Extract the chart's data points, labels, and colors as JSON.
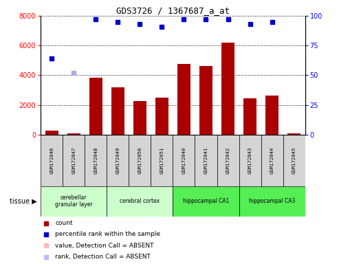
{
  "title": "GDS3726 / 1367687_a_at",
  "samples": [
    "GSM172046",
    "GSM172047",
    "GSM172048",
    "GSM172049",
    "GSM172050",
    "GSM172051",
    "GSM172040",
    "GSM172041",
    "GSM172042",
    "GSM172043",
    "GSM172044",
    "GSM172045"
  ],
  "count_values": [
    280,
    100,
    3820,
    3200,
    2280,
    2480,
    4780,
    4600,
    6200,
    2430,
    2620,
    100
  ],
  "rank_present": [
    64,
    null,
    97,
    95,
    93,
    91,
    97,
    97,
    97,
    93,
    95,
    null
  ],
  "rank_absent": [
    null,
    52,
    null,
    null,
    null,
    null,
    null,
    null,
    null,
    null,
    null,
    null
  ],
  "tissues": [
    {
      "label": "cerebellar\ngranular layer",
      "start": 0,
      "end": 3,
      "color": "#ccffcc"
    },
    {
      "label": "cerebral cortex",
      "start": 3,
      "end": 6,
      "color": "#ccffcc"
    },
    {
      "label": "hippocampal CA1",
      "start": 6,
      "end": 9,
      "color": "#55ee55"
    },
    {
      "label": "hippocampal CA3",
      "start": 9,
      "end": 12,
      "color": "#55ee55"
    }
  ],
  "bar_color": "#aa0000",
  "dot_color_present": "#0000cc",
  "dot_color_absent_rank": "#aaaaee",
  "ylim_left": [
    0,
    8000
  ],
  "ylim_right": [
    0,
    100
  ],
  "yticks_left": [
    0,
    2000,
    4000,
    6000,
    8000
  ],
  "yticks_right": [
    0,
    25,
    50,
    75,
    100
  ],
  "bar_width": 0.6,
  "background_color": "#ffffff",
  "sample_box_color": "#d4d4d4",
  "legend_items": [
    {
      "symbol": "s",
      "color": "#aa0000",
      "label": "count"
    },
    {
      "symbol": "s",
      "color": "#0000cc",
      "label": "percentile rank within the sample"
    },
    {
      "symbol": "s",
      "color": "#ffbbbb",
      "label": "value, Detection Call = ABSENT"
    },
    {
      "symbol": "s",
      "color": "#bbbbff",
      "label": "rank, Detection Call = ABSENT"
    }
  ]
}
